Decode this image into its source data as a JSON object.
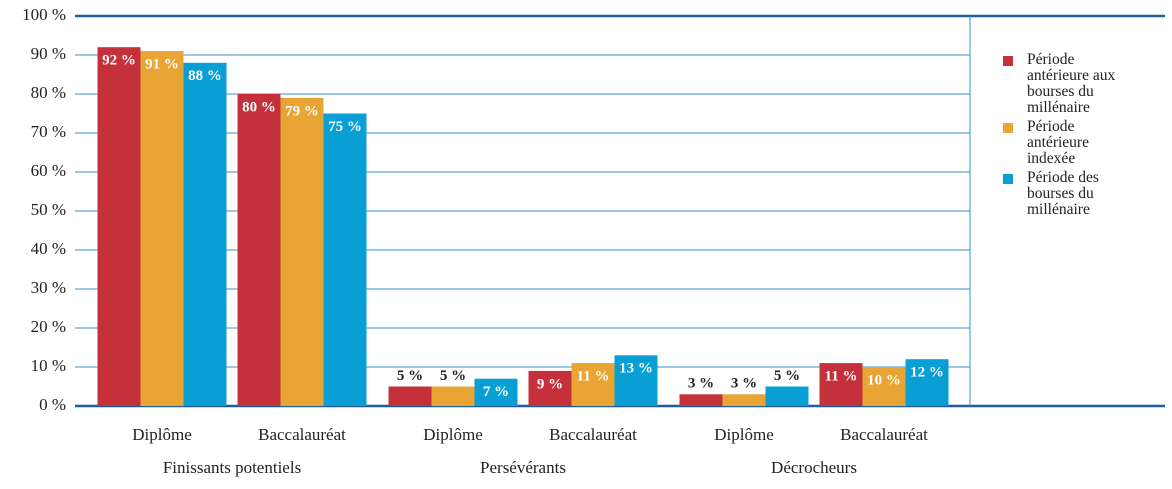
{
  "chart_data": {
    "type": "bar",
    "categories": [
      "Diplôme",
      "Baccalauréat",
      "Diplôme",
      "Baccalauréat",
      "Diplôme",
      "Baccalauréat"
    ],
    "group_labels": [
      "Finissants potentiels",
      "Persévérants",
      "Décrocheurs"
    ],
    "series": [
      {
        "name": "Période antérieure aux bourses du millénaire",
        "color": "#c4313b",
        "values": [
          92,
          80,
          5,
          9,
          3,
          11
        ],
        "value_labels": [
          "92 %",
          "80 %",
          "5 %",
          "9 %",
          "3 %",
          "11 %"
        ]
      },
      {
        "name": "Période antérieure indexée",
        "color": "#e8a534",
        "values": [
          91,
          79,
          5,
          11,
          3,
          10
        ],
        "value_labels": [
          "91 %",
          "79 %",
          "5 %",
          "11 %",
          "3 %",
          "10 %"
        ]
      },
      {
        "name": "Période des bourses du millénaire",
        "color": "#0a9fd4",
        "values": [
          88,
          75,
          7,
          13,
          5,
          12
        ],
        "value_labels": [
          "88 %",
          "75 %",
          "7 %",
          "13 %",
          "5 %",
          "12 %"
        ]
      }
    ],
    "ylim": [
      0,
      100
    ],
    "yticks": [
      {
        "value": 0,
        "label": "0 %"
      },
      {
        "value": 10,
        "label": "10 %"
      },
      {
        "value": 20,
        "label": "20 %"
      },
      {
        "value": 30,
        "label": "30 %"
      },
      {
        "value": 40,
        "label": "40 %"
      },
      {
        "value": 50,
        "label": "50 %"
      },
      {
        "value": 60,
        "label": "60 %"
      },
      {
        "value": 70,
        "label": "70 %"
      },
      {
        "value": 80,
        "label": "80 %"
      },
      {
        "value": 90,
        "label": "90 %"
      },
      {
        "value": 100,
        "label": "100 %"
      }
    ],
    "grid": true,
    "legend": "right"
  }
}
